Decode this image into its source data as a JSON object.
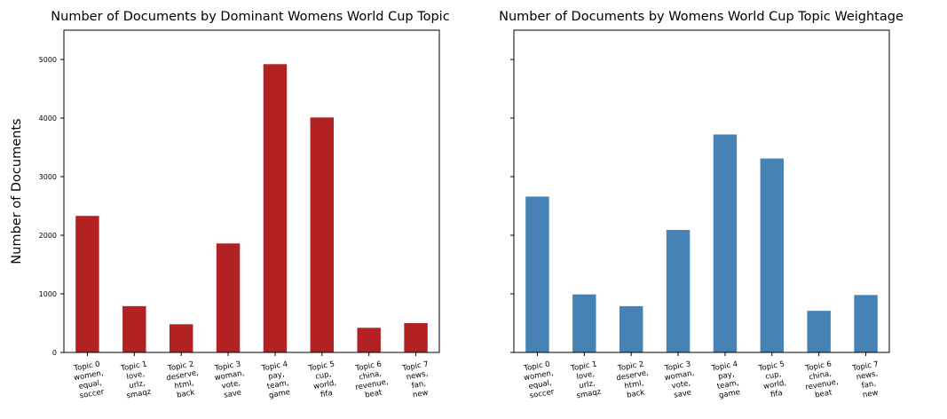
{
  "chart_data": [
    {
      "type": "bar",
      "title": "Number of Documents by Dominant Womens World Cup Topic",
      "ylabel": "Number of Documents",
      "xlabel": "",
      "ylim": [
        0,
        5500
      ],
      "yticks": [
        0,
        1000,
        2000,
        3000,
        4000,
        5000
      ],
      "grid": false,
      "color": "#b22222",
      "categories": [
        "Topic 0\nwomen,\nequal,\nsoccer",
        "Topic 1\nlove,\nurlz,\nsmaqz",
        "Topic 2\ndeserve,\nhtml,\nback",
        "Topic 3\nwoman,\nvote,\nsave",
        "Topic 4\npay,\nteam,\ngame",
        "Topic 5\ncup,\nworld,\nfifa",
        "Topic 6\nchina,\nrevenue,\nbeat",
        "Topic 7\nnews,\nfan,\nnew"
      ],
      "values": [
        2330,
        790,
        480,
        1860,
        4920,
        4010,
        420,
        500
      ]
    },
    {
      "type": "bar",
      "title": "Number of Documents by Womens World Cup Topic Weightage",
      "ylabel": "",
      "xlabel": "",
      "ylim": [
        0,
        5500
      ],
      "yticks": [
        0,
        1000,
        2000,
        3000,
        4000,
        5000
      ],
      "shared_y": true,
      "grid": false,
      "color": "#4682b4",
      "categories": [
        "Topic 0\nwomen,\nequal,\nsoccer",
        "Topic 1\nlove,\nurlz,\nsmaqz",
        "Topic 2\ndeserve,\nhtml,\nback",
        "Topic 3\nwoman,\nvote,\nsave",
        "Topic 4\npay,\nteam,\ngame",
        "Topic 5\ncup,\nworld,\nfifa",
        "Topic 6\nchina,\nrevenue,\nbeat",
        "Topic 7\nnews,\nfan,\nnew"
      ],
      "values": [
        2660,
        990,
        790,
        2090,
        3720,
        3310,
        710,
        980
      ]
    }
  ]
}
